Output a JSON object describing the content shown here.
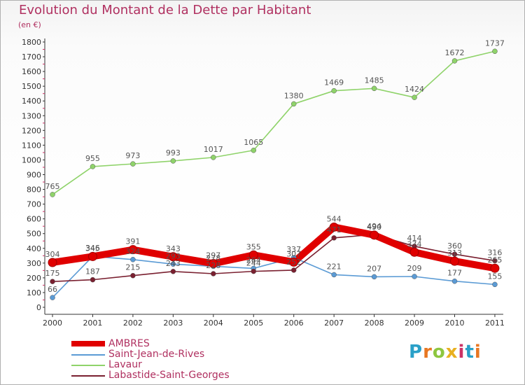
{
  "header": {
    "title": "Evolution du Montant de la Dette par Habitant",
    "unit": "(en €)"
  },
  "brand": {
    "text": "Proxiti",
    "colors": [
      "#2aa0c8",
      "#e87722",
      "#8dc63f",
      "#e8b020",
      "#cc3366",
      "#2aa0c8",
      "#e87722"
    ]
  },
  "chart_data": {
    "type": "line",
    "title": "Evolution du Montant de la Dette par Habitant",
    "ylabel": "(en €)",
    "xlabel": "",
    "x": [
      "2000",
      "2001",
      "2002",
      "2003",
      "2004",
      "2005",
      "2006",
      "2007",
      "2008",
      "2009",
      "2010",
      "2011"
    ],
    "ylim": [
      0,
      1800
    ],
    "yticks": [
      0,
      100,
      200,
      300,
      400,
      500,
      600,
      700,
      800,
      900,
      1000,
      1100,
      1200,
      1300,
      1400,
      1500,
      1600,
      1700,
      1800
    ],
    "grid": false,
    "legend_position": "bottom-left",
    "series": [
      {
        "name": "AMBRES",
        "color": "#e00000",
        "values": [
          304,
          345,
          391,
          343,
          297,
          355,
          307,
          544,
          490,
          374,
          313,
          265
        ],
        "labels": [
          "304",
          "345",
          "391",
          "343",
          "297",
          "355",
          "307",
          "544",
          "490",
          "374",
          "313",
          "265"
        ]
      },
      {
        "name": "Saint-Jean-de-Rives",
        "color": "#5b9bd5",
        "values": [
          66,
          346,
          324,
          293,
          278,
          264,
          337,
          221,
          207,
          209,
          177,
          155
        ],
        "labels": [
          "66",
          "346",
          "324",
          "293",
          "278",
          "264",
          "337",
          "221",
          "207",
          "209",
          "177",
          "155"
        ]
      },
      {
        "name": "Lavaur",
        "color": "#8fd36a",
        "values": [
          765,
          955,
          973,
          993,
          1017,
          1065,
          1380,
          1469,
          1485,
          1424,
          1672,
          1737
        ],
        "labels": [
          "765",
          "955",
          "973",
          "993",
          "1017",
          "1065",
          "1380",
          "1469",
          "1485",
          "1424",
          "1672",
          "1737"
        ]
      },
      {
        "name": "Labastide-Saint-Georges",
        "color": "#7a2030",
        "values": [
          175,
          187,
          215,
          243,
          228,
          244,
          252,
          471,
          494,
          414,
          360,
          316
        ],
        "labels": [
          "175",
          "187",
          "215",
          "243",
          "228",
          "244",
          "252",
          "471",
          "494",
          "414",
          "360",
          "316"
        ]
      }
    ]
  }
}
